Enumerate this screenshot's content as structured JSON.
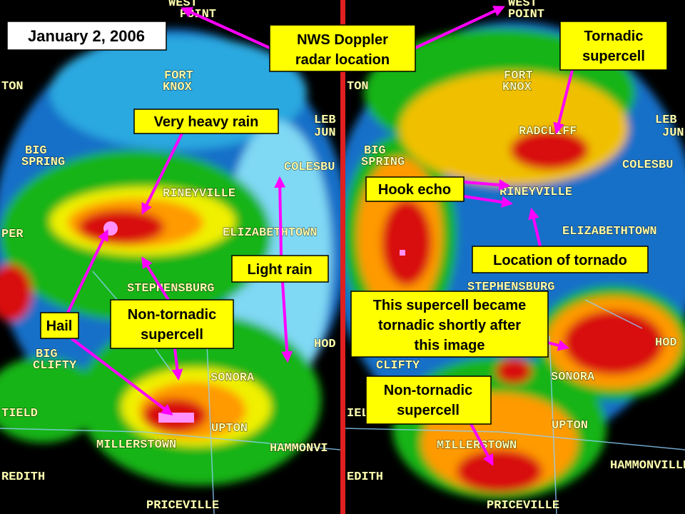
{
  "date_label": "January 2, 2006",
  "annotations": {
    "radar_location": [
      "NWS Doppler",
      "radar location"
    ],
    "very_heavy_rain": [
      "Very heavy rain"
    ],
    "light_rain": [
      "Light rain"
    ],
    "hail": [
      "Hail"
    ],
    "left_non_tornadic": [
      "Non-tornadic",
      "supercell"
    ],
    "tornadic": [
      "Tornadic",
      "supercell"
    ],
    "hook_echo": [
      "Hook echo"
    ],
    "tornado_location": [
      "Location of tornado"
    ],
    "became_tornadic": [
      "This supercell became",
      "tornadic shortly after",
      "this image"
    ],
    "right_non_tornadic": [
      "Non-tornadic",
      "supercell"
    ]
  },
  "places": {
    "left": [
      "WEST",
      "POINT",
      "FORT",
      "KNOX",
      "TON",
      "BIG",
      "SPRING",
      "RINEYVILLE",
      "COLESBU",
      "LEB",
      "JUN",
      "ELIZABETHTOWN",
      "PER",
      "STEPHENSBURG",
      "BIG",
      "CLIFTY",
      "SONORA",
      "HOD",
      "TIELD",
      "UPTON",
      "MILLERSTOWN",
      "HAMMONVI",
      "REDITH",
      "PRICEVILLE"
    ],
    "right": [
      "WEST",
      "POINT",
      "FORT",
      "KNOX",
      "TON",
      "BIG",
      "SPRING",
      "RADCLIFF",
      "LEB",
      "JUN",
      "COLESBU",
      "RINEYVILLE",
      "ELIZABETHTOWN",
      "STEPHENSBURG",
      "CLIFTY",
      "SONORA",
      "HOD",
      "IELD",
      "UPTON",
      "MILLERSTOWN",
      "HAMMONVILLE",
      "EDITH",
      "PRICEVILLE"
    ]
  }
}
